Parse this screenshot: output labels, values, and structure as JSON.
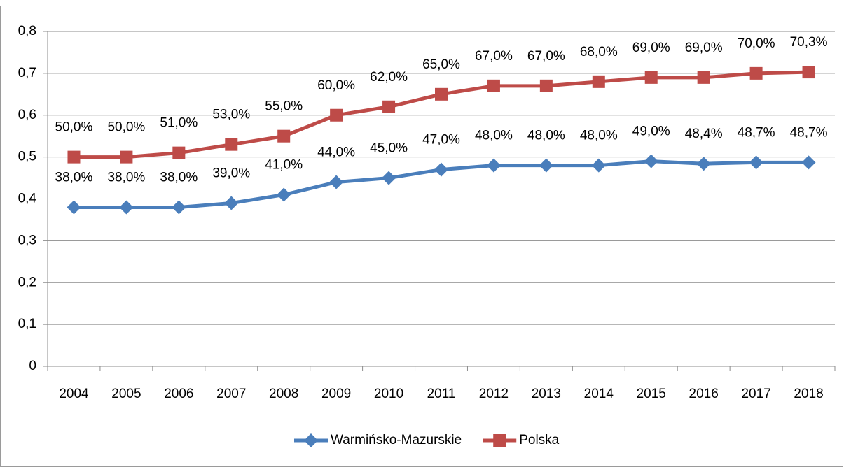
{
  "chart_data": {
    "type": "line",
    "categories": [
      "2004",
      "2005",
      "2006",
      "2007",
      "2008",
      "2009",
      "2010",
      "2011",
      "2012",
      "2013",
      "2014",
      "2015",
      "2016",
      "2017",
      "2018"
    ],
    "series": [
      {
        "name": "Warmińsko-Mazurskie",
        "color": "#4a7ebb",
        "marker": "diamond",
        "values": [
          0.38,
          0.38,
          0.38,
          0.39,
          0.41,
          0.44,
          0.45,
          0.47,
          0.48,
          0.48,
          0.48,
          0.49,
          0.484,
          0.487,
          0.487
        ],
        "value_labels": [
          "38,0%",
          "38,0%",
          "38,0%",
          "39,0%",
          "41,0%",
          "44,0%",
          "45,0%",
          "47,0%",
          "48,0%",
          "48,0%",
          "48,0%",
          "49,0%",
          "48,4%",
          "48,7%",
          "48,7%"
        ]
      },
      {
        "name": "Polska",
        "color": "#be4b48",
        "marker": "square",
        "values": [
          0.5,
          0.5,
          0.51,
          0.53,
          0.55,
          0.6,
          0.62,
          0.65,
          0.67,
          0.67,
          0.68,
          0.69,
          0.69,
          0.7,
          0.703
        ],
        "value_labels": [
          "50,0%",
          "50,0%",
          "51,0%",
          "53,0%",
          "55,0%",
          "60,0%",
          "62,0%",
          "65,0%",
          "67,0%",
          "67,0%",
          "68,0%",
          "69,0%",
          "69,0%",
          "70,0%",
          "70,3%"
        ]
      }
    ],
    "ylim": [
      0,
      0.8
    ],
    "yticks": [
      0,
      {
        "value": 0.1,
        "label": "0,1"
      },
      {
        "value": 0.2,
        "label": "0,2"
      },
      {
        "value": 0.3,
        "label": "0,3"
      },
      {
        "value": 0.4,
        "label": "0,4"
      },
      {
        "value": 0.5,
        "label": "0,5"
      },
      {
        "value": 0.6,
        "label": "0,6"
      },
      {
        "value": 0.7,
        "label": "0,7"
      },
      {
        "value": 0.8,
        "label": "0,8"
      }
    ],
    "grid": true,
    "legend": "bottom"
  }
}
